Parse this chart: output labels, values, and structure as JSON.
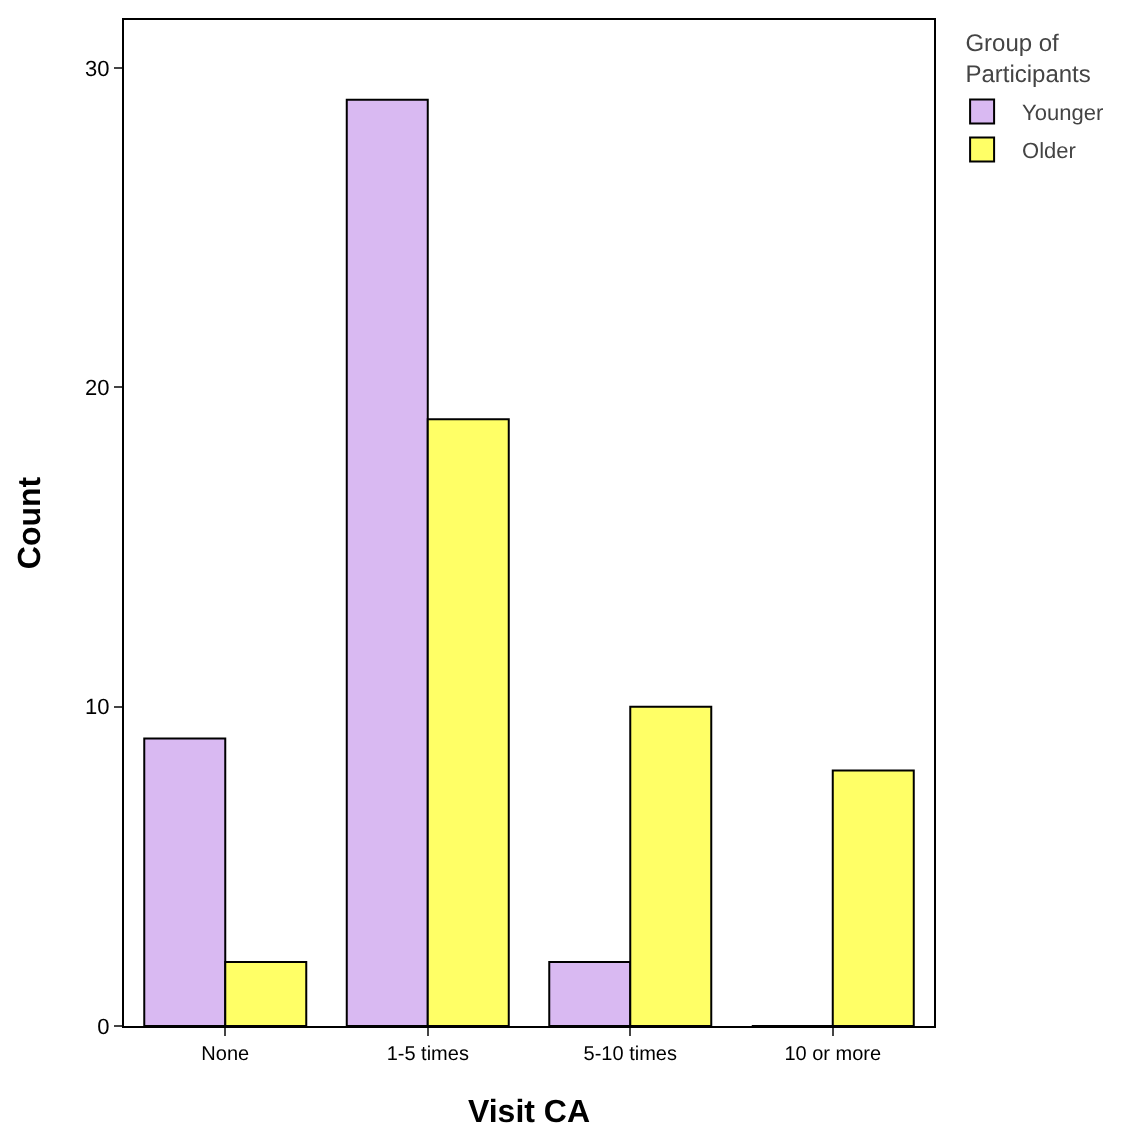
{
  "chart_data": {
    "type": "bar",
    "xlabel": "Visit CA",
    "ylabel": "Count",
    "legend_title": "Group of Participants",
    "categories": [
      "None",
      "1-5 times",
      "5-10 times",
      "10 or more"
    ],
    "series": [
      {
        "name": "Younger",
        "color": "#d9b9f2",
        "values": [
          9,
          29,
          2,
          0
        ]
      },
      {
        "name": "Older",
        "color": "#ffff66",
        "values": [
          2,
          19,
          10,
          8
        ]
      }
    ],
    "ylim": [
      0,
      31.5
    ],
    "yticks": [
      0,
      10,
      20,
      30
    ],
    "grid": false,
    "legend": "top right"
  }
}
